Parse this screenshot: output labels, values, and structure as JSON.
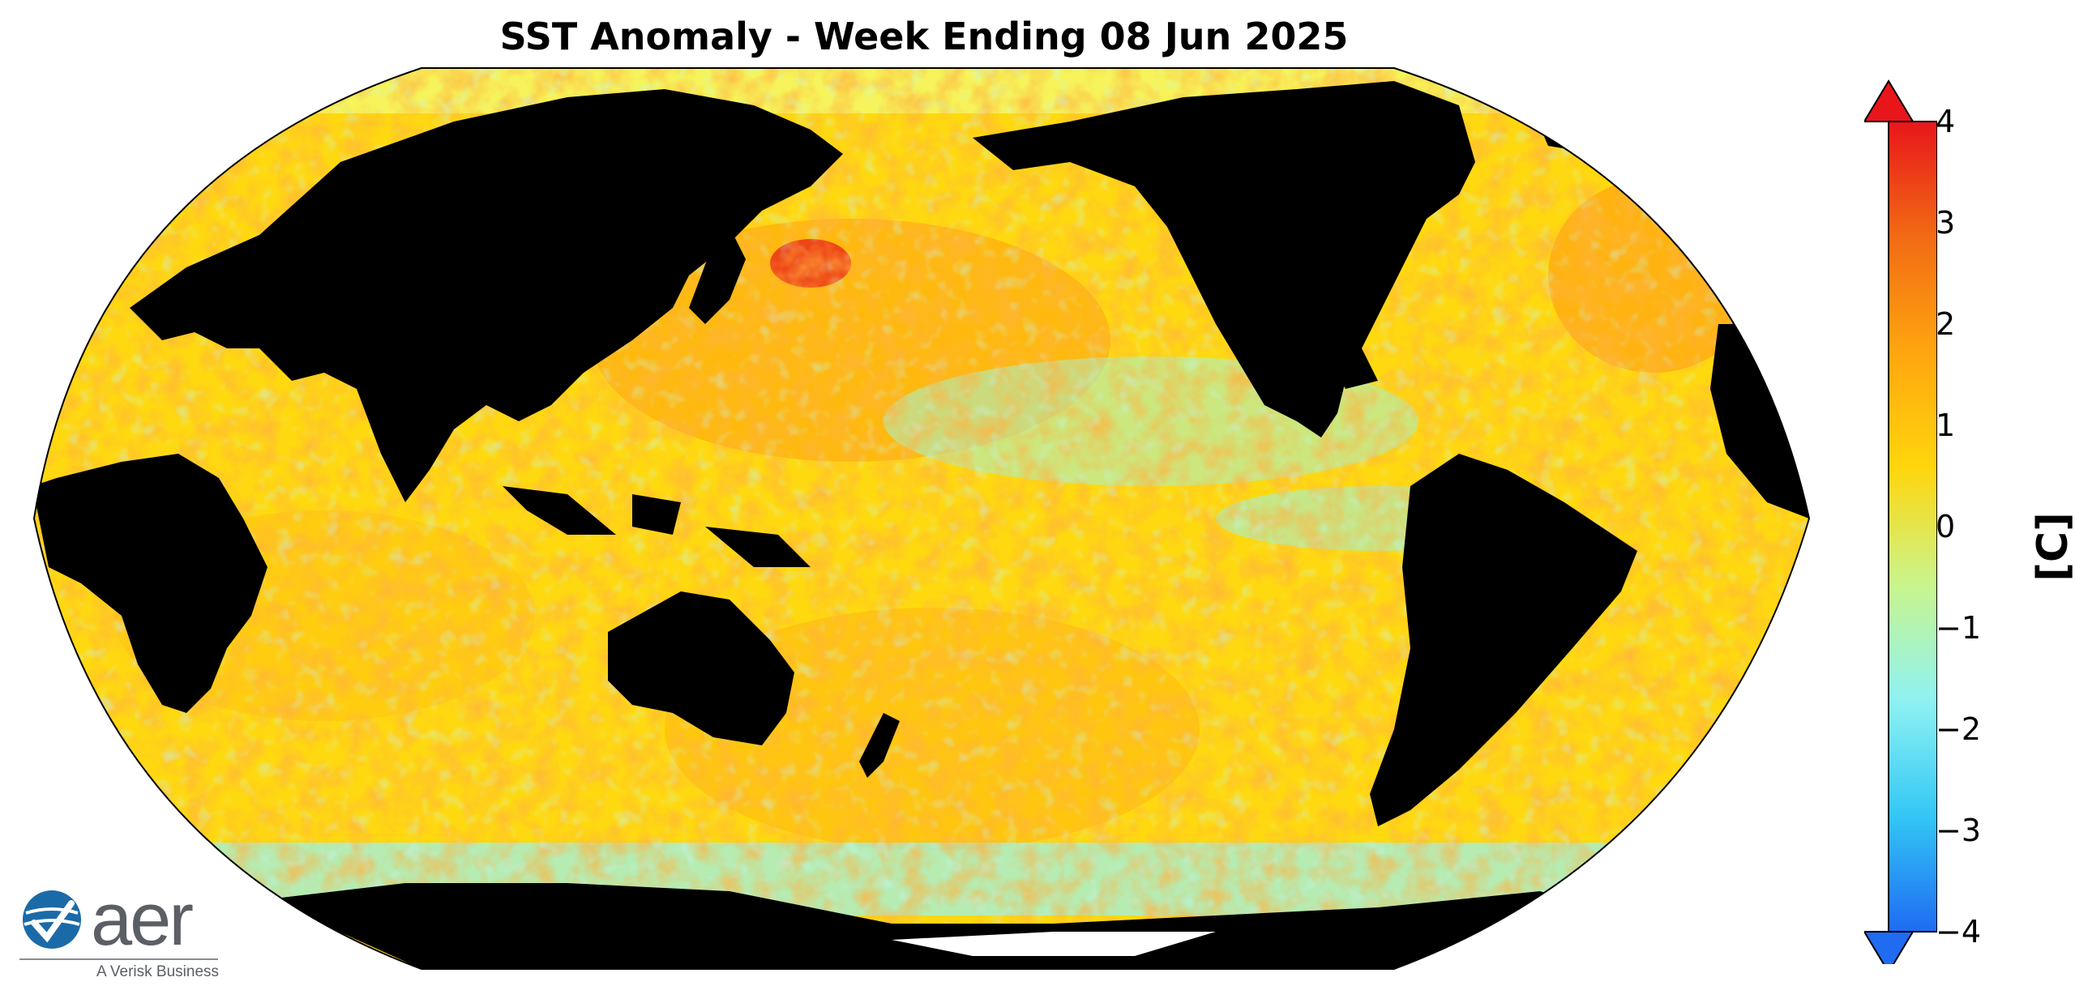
{
  "title": "SST Anomaly - Week Ending 08 Jun 2025",
  "projection": "Robinson, Pacific-centered",
  "colorbar": {
    "unit_label": "[C]",
    "min": -4,
    "max": 4,
    "ticks": [
      "4",
      "3",
      "2",
      "1",
      "0",
      "−1",
      "−2",
      "−3",
      "−4"
    ],
    "extend": "both",
    "colors": {
      "max": "#e8161b",
      "hot": "#f26b14",
      "warm": "#ffa60f",
      "mild": "#ffd60d",
      "neutral": "#c9f58d",
      "cool": "#8ff2f2",
      "cold": "#33c7f5",
      "min": "#1f6bf2"
    }
  },
  "logo": {
    "word": "aer",
    "tagline": "A Verisk Business"
  },
  "map_colors": {
    "land": "#000000",
    "ocean_base": "#ffd90f",
    "sea_ice": "#ffffff"
  }
}
